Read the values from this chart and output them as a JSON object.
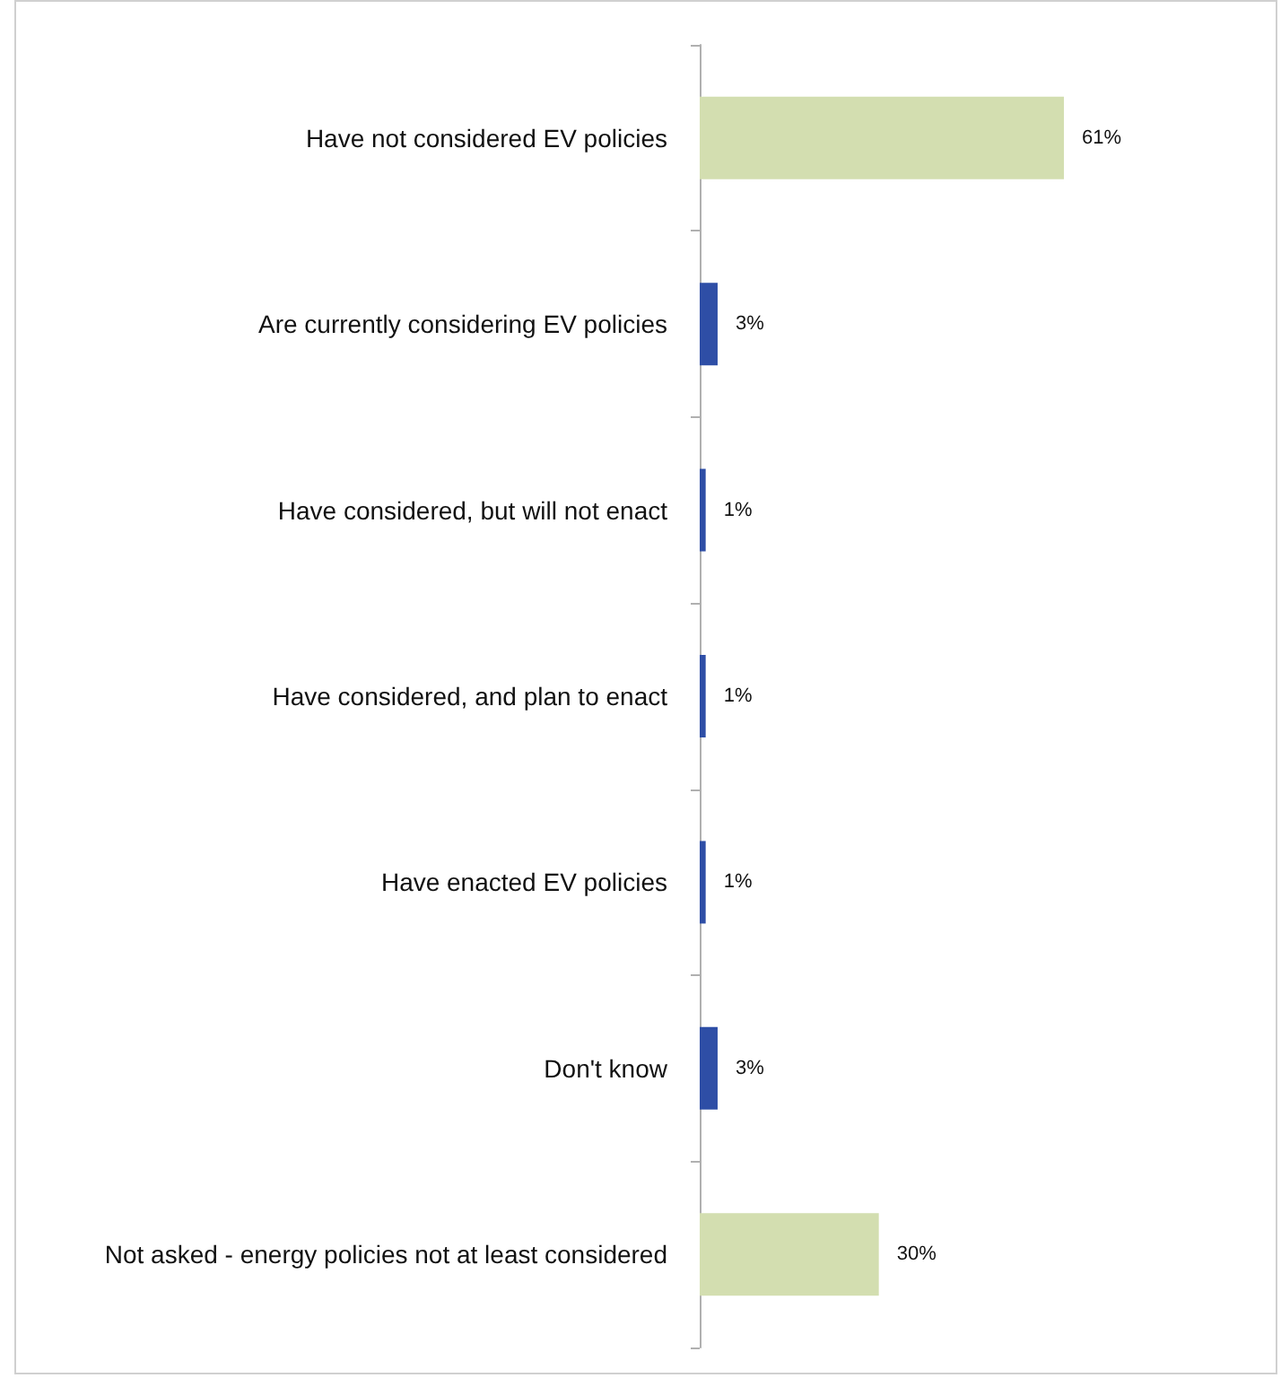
{
  "chart_data": {
    "type": "bar",
    "orientation": "horizontal",
    "categories": [
      "Have not considered EV policies",
      "Are currently considering EV policies",
      "Have considered, but will not enact",
      "Have considered, and plan to enact",
      "Have enacted EV policies",
      "Don't know",
      "Not asked - energy policies not at least considered"
    ],
    "values": [
      61,
      3,
      1,
      1,
      1,
      3,
      30
    ],
    "colors": [
      "#d3deb0",
      "#2e4ea6",
      "#2e4ea6",
      "#2e4ea6",
      "#2e4ea6",
      "#2e4ea6",
      "#d3deb0"
    ],
    "value_labels": [
      "61%",
      "3%",
      "1%",
      "1%",
      "1%",
      "3%",
      "30%"
    ]
  }
}
